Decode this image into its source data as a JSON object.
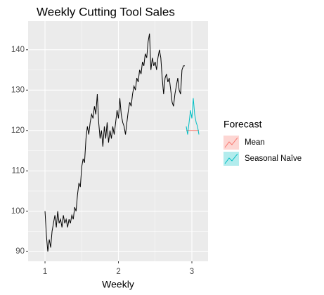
{
  "chart_data": {
    "type": "line",
    "title": "Weekly Cutting Tool Sales",
    "x_label": "Weekly",
    "x": [
      1.0,
      1.019,
      1.038,
      1.058,
      1.077,
      1.096,
      1.115,
      1.135,
      1.154,
      1.173,
      1.192,
      1.212,
      1.231,
      1.25,
      1.269,
      1.288,
      1.308,
      1.327,
      1.346,
      1.365,
      1.385,
      1.404,
      1.423,
      1.442,
      1.462,
      1.481,
      1.5,
      1.519,
      1.538,
      1.558,
      1.577,
      1.596,
      1.615,
      1.635,
      1.654,
      1.673,
      1.692,
      1.712,
      1.731,
      1.75,
      1.769,
      1.788,
      1.808,
      1.827,
      1.846,
      1.865,
      1.885,
      1.904,
      1.923,
      1.942,
      1.962,
      1.981,
      2.0,
      2.019,
      2.038,
      2.058,
      2.077,
      2.096,
      2.115,
      2.135,
      2.154,
      2.173,
      2.192,
      2.212,
      2.231,
      2.25,
      2.269,
      2.288,
      2.308,
      2.327,
      2.346,
      2.365,
      2.385,
      2.404,
      2.423,
      2.442,
      2.462,
      2.481,
      2.5,
      2.519,
      2.538,
      2.558,
      2.577,
      2.596,
      2.615,
      2.635,
      2.654,
      2.673,
      2.692,
      2.712,
      2.731,
      2.75,
      2.769,
      2.788,
      2.808,
      2.827,
      2.846,
      2.865,
      2.885,
      2.904
    ],
    "values": [
      100,
      94,
      90,
      93,
      91,
      95,
      97,
      99,
      96,
      100,
      97,
      98,
      96,
      99,
      97,
      98,
      96,
      98,
      97,
      99,
      98,
      101,
      100,
      104,
      107,
      106,
      111,
      113,
      112,
      118,
      121,
      119,
      122,
      124,
      123,
      126,
      124,
      129,
      122,
      118,
      120,
      116,
      121,
      118,
      122,
      117,
      120,
      118,
      121,
      119,
      122,
      125,
      123,
      128,
      124,
      122,
      121,
      119,
      122,
      125,
      127,
      126,
      129,
      131,
      130,
      133,
      132,
      135,
      134,
      137,
      136,
      139,
      138,
      142,
      144,
      135,
      138,
      136,
      137,
      135,
      138,
      140,
      138,
      133,
      129,
      133,
      134,
      132,
      133,
      130,
      127,
      126,
      129,
      131,
      133,
      130,
      129,
      135,
      136,
      136
    ],
    "color": "#000000",
    "series": [
      {
        "name": "Mean",
        "color": "#F8766D",
        "x": [
          2.923,
          2.942,
          2.962,
          2.981,
          3.0,
          3.019,
          3.038,
          3.058,
          3.077,
          3.096
        ],
        "values": [
          120,
          120,
          120,
          120,
          120,
          120,
          120,
          120,
          120,
          120
        ]
      },
      {
        "name": "Seasonal Naïve",
        "color": "#00BFC4",
        "x": [
          2.923,
          2.942,
          2.962,
          2.981,
          3.0,
          3.019,
          3.038,
          3.058,
          3.077,
          3.096
        ],
        "values": [
          121,
          119,
          122,
          125,
          123,
          128,
          124,
          122,
          121,
          119
        ]
      }
    ],
    "legend_title": "Forecast",
    "xlim": [
      0.77,
      3.22
    ],
    "xticks": [
      1,
      2,
      3
    ],
    "ylim": [
      87.6,
      147.1
    ],
    "yticks": [
      90,
      100,
      110,
      120,
      130,
      140
    ],
    "grid": true
  }
}
